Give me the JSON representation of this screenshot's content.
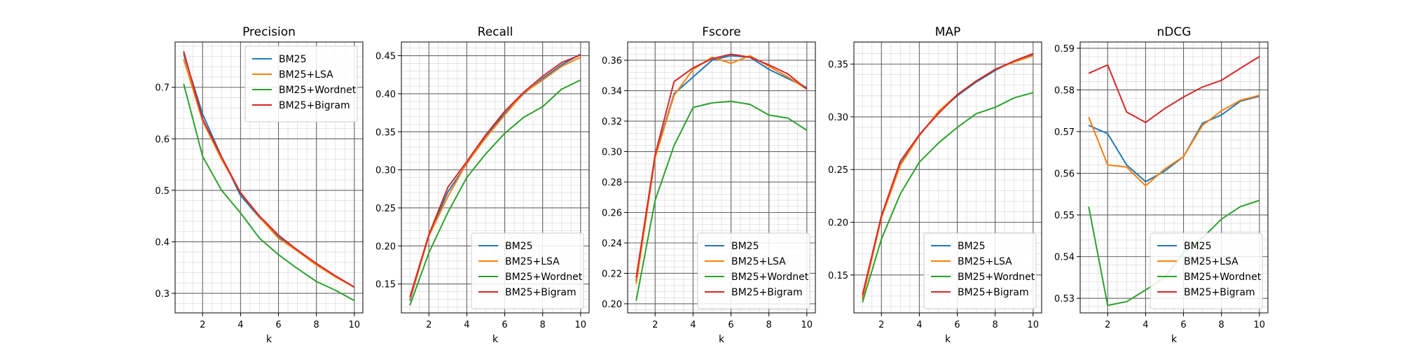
{
  "chart_data": [
    {
      "type": "line",
      "title": "Precision",
      "xlabel": "k",
      "ylabel": "",
      "x": [
        1,
        2,
        3,
        4,
        5,
        6,
        7,
        8,
        9,
        10
      ],
      "xticks": [
        2,
        4,
        6,
        8,
        10
      ],
      "xlim": [
        0.55,
        10.45
      ],
      "ylim": [
        0.262,
        0.788
      ],
      "yticks": [
        0.3,
        0.4,
        0.5,
        0.6,
        0.7
      ],
      "ytick_labels": [
        "0.3",
        "0.4",
        "0.5",
        "0.6",
        "0.7"
      ],
      "grid": true,
      "legend_position": "upper right",
      "series": [
        {
          "name": "BM25",
          "color": "#1f77b4",
          "values": [
            0.765,
            0.648,
            0.565,
            0.49,
            0.447,
            0.41,
            0.384,
            0.357,
            0.333,
            0.312
          ]
        },
        {
          "name": "BM25+LSA",
          "color": "#ff7f0e",
          "values": [
            0.755,
            0.635,
            0.56,
            0.496,
            0.448,
            0.407,
            0.382,
            0.355,
            0.332,
            0.312
          ]
        },
        {
          "name": "BM25+Wordnet",
          "color": "#2ca02c",
          "values": [
            0.707,
            0.566,
            0.5,
            0.456,
            0.407,
            0.375,
            0.348,
            0.323,
            0.306,
            0.286
          ]
        },
        {
          "name": "BM25+Bigram",
          "color": "#d62728",
          "values": [
            0.77,
            0.638,
            0.565,
            0.495,
            0.45,
            0.413,
            0.384,
            0.358,
            0.334,
            0.312
          ]
        }
      ]
    },
    {
      "type": "line",
      "title": "Recall",
      "xlabel": "k",
      "ylabel": "",
      "x": [
        1,
        2,
        3,
        4,
        5,
        6,
        7,
        8,
        9,
        10
      ],
      "xticks": [
        2,
        4,
        6,
        8,
        10
      ],
      "xlim": [
        0.55,
        10.45
      ],
      "ylim": [
        0.112,
        0.468
      ],
      "yticks": [
        0.15,
        0.2,
        0.25,
        0.3,
        0.35,
        0.4,
        0.45
      ],
      "ytick_labels": [
        "0.15",
        "0.20",
        "0.25",
        "0.30",
        "0.35",
        "0.40",
        "0.45"
      ],
      "grid": true,
      "legend_position": "lower right",
      "series": [
        {
          "name": "BM25",
          "color": "#1f77b4",
          "values": [
            0.128,
            0.214,
            0.271,
            0.308,
            0.345,
            0.374,
            0.4,
            0.42,
            0.438,
            0.452
          ]
        },
        {
          "name": "BM25+LSA",
          "color": "#ff7f0e",
          "values": [
            0.13,
            0.213,
            0.265,
            0.309,
            0.342,
            0.372,
            0.401,
            0.418,
            0.436,
            0.448
          ]
        },
        {
          "name": "BM25+Wordnet",
          "color": "#2ca02c",
          "values": [
            0.122,
            0.191,
            0.244,
            0.29,
            0.321,
            0.348,
            0.369,
            0.383,
            0.406,
            0.418
          ]
        },
        {
          "name": "BM25+Bigram",
          "color": "#d62728",
          "values": [
            0.133,
            0.215,
            0.277,
            0.311,
            0.346,
            0.377,
            0.402,
            0.423,
            0.441,
            0.451
          ]
        }
      ]
    },
    {
      "type": "line",
      "title": "Fscore",
      "xlabel": "k",
      "ylabel": "",
      "x": [
        1,
        2,
        3,
        4,
        5,
        6,
        7,
        8,
        9,
        10
      ],
      "xticks": [
        2,
        4,
        6,
        8,
        10
      ],
      "xlim": [
        0.55,
        10.45
      ],
      "ylim": [
        0.194,
        0.372
      ],
      "yticks": [
        0.2,
        0.22,
        0.24,
        0.26,
        0.28,
        0.3,
        0.32,
        0.34,
        0.36
      ],
      "ytick_labels": [
        "0.20",
        "0.22",
        "0.24",
        "0.26",
        "0.28",
        "0.30",
        "0.32",
        "0.34",
        "0.36"
      ],
      "grid": true,
      "legend_position": "lower right",
      "series": [
        {
          "name": "BM25",
          "color": "#1f77b4",
          "values": [
            0.215,
            0.297,
            0.338,
            0.349,
            0.36,
            0.363,
            0.362,
            0.354,
            0.348,
            0.342
          ]
        },
        {
          "name": "BM25+LSA",
          "color": "#ff7f0e",
          "values": [
            0.213,
            0.296,
            0.337,
            0.354,
            0.362,
            0.358,
            0.363,
            0.356,
            0.349,
            0.341
          ]
        },
        {
          "name": "BM25+Wordnet",
          "color": "#2ca02c",
          "values": [
            0.202,
            0.268,
            0.304,
            0.329,
            0.332,
            0.333,
            0.331,
            0.324,
            0.322,
            0.314
          ]
        },
        {
          "name": "BM25+Bigram",
          "color": "#d62728",
          "values": [
            0.217,
            0.298,
            0.346,
            0.355,
            0.361,
            0.364,
            0.362,
            0.357,
            0.351,
            0.341
          ]
        }
      ]
    },
    {
      "type": "line",
      "title": "MAP",
      "xlabel": "k",
      "ylabel": "",
      "x": [
        1,
        2,
        3,
        4,
        5,
        6,
        7,
        8,
        9,
        10
      ],
      "xticks": [
        2,
        4,
        6,
        8,
        10
      ],
      "xlim": [
        0.55,
        10.45
      ],
      "ylim": [
        0.114,
        0.371
      ],
      "yticks": [
        0.15,
        0.2,
        0.25,
        0.3,
        0.35
      ],
      "ytick_labels": [
        "0.15",
        "0.20",
        "0.25",
        "0.30",
        "0.35"
      ],
      "grid": true,
      "legend_position": "lower right",
      "series": [
        {
          "name": "BM25",
          "color": "#1f77b4",
          "values": [
            0.128,
            0.206,
            0.255,
            0.283,
            0.304,
            0.32,
            0.333,
            0.344,
            0.353,
            0.359
          ]
        },
        {
          "name": "BM25+LSA",
          "color": "#ff7f0e",
          "values": [
            0.127,
            0.204,
            0.254,
            0.282,
            0.305,
            0.321,
            0.334,
            0.345,
            0.352,
            0.358
          ]
        },
        {
          "name": "BM25+Wordnet",
          "color": "#2ca02c",
          "values": [
            0.124,
            0.184,
            0.227,
            0.257,
            0.275,
            0.29,
            0.303,
            0.309,
            0.318,
            0.323
          ]
        },
        {
          "name": "BM25+Bigram",
          "color": "#d62728",
          "values": [
            0.131,
            0.206,
            0.258,
            0.283,
            0.303,
            0.321,
            0.334,
            0.345,
            0.353,
            0.36
          ]
        }
      ]
    },
    {
      "type": "line",
      "title": "nDCG",
      "xlabel": "k",
      "ylabel": "",
      "x": [
        1,
        2,
        3,
        4,
        5,
        6,
        7,
        8,
        9,
        10
      ],
      "xticks": [
        2,
        4,
        6,
        8,
        10
      ],
      "xlim": [
        0.55,
        10.45
      ],
      "ylim": [
        0.5265,
        0.5915
      ],
      "yticks": [
        0.53,
        0.54,
        0.55,
        0.56,
        0.57,
        0.58,
        0.59
      ],
      "ytick_labels": [
        "0.53",
        "0.54",
        "0.55",
        "0.56",
        "0.57",
        "0.58",
        "0.59"
      ],
      "grid": true,
      "legend_position": "lower right",
      "series": [
        {
          "name": "BM25",
          "color": "#1f77b4",
          "values": [
            0.5715,
            0.5695,
            0.562,
            0.558,
            0.5605,
            0.564,
            0.572,
            0.574,
            0.5773,
            0.5785
          ]
        },
        {
          "name": "BM25+LSA",
          "color": "#ff7f0e",
          "values": [
            0.5735,
            0.562,
            0.5615,
            0.557,
            0.561,
            0.564,
            0.5715,
            0.575,
            0.5775,
            0.5787
          ]
        },
        {
          "name": "BM25+Wordnet",
          "color": "#2ca02c",
          "values": [
            0.552,
            0.5283,
            0.5292,
            0.532,
            0.535,
            0.541,
            0.5445,
            0.549,
            0.552,
            0.5535
          ]
        },
        {
          "name": "BM25+Bigram",
          "color": "#d62728",
          "values": [
            0.584,
            0.586,
            0.5747,
            0.5722,
            0.5755,
            0.5783,
            0.5807,
            0.5823,
            0.5852,
            0.588
          ]
        }
      ]
    }
  ]
}
